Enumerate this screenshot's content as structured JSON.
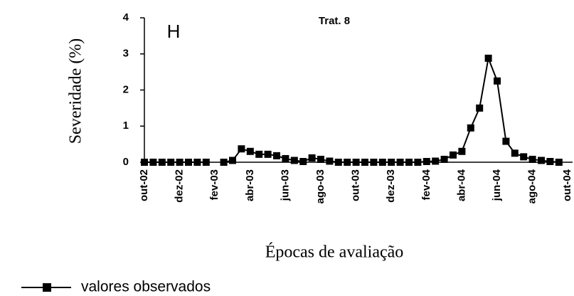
{
  "chart_data": {
    "type": "line",
    "title": "Trat. 8",
    "annotation": "H",
    "y_label": "Severidade (%)",
    "x_label": "Épocas de avaliação",
    "categories": [
      "out-02",
      null,
      null,
      null,
      "dez-02",
      null,
      null,
      null,
      "fev-03",
      null,
      null,
      null,
      "abr-03",
      null,
      null,
      null,
      "jun-03",
      null,
      null,
      null,
      "ago-03",
      null,
      null,
      null,
      "out-03",
      null,
      null,
      null,
      "dez-03",
      null,
      null,
      null,
      "fev-04",
      null,
      null,
      null,
      "abr-04",
      null,
      null,
      null,
      "jun-04",
      null,
      null,
      null,
      "ago-04",
      null,
      null,
      null,
      "out-04"
    ],
    "series": [
      {
        "name": "valores observados",
        "color": "#000000",
        "values": [
          0,
          0,
          0,
          0,
          0,
          0,
          0,
          0,
          null,
          0,
          0.05,
          0.37,
          0.3,
          0.22,
          0.22,
          0.18,
          0.1,
          0.05,
          0.02,
          0.12,
          0.08,
          0.03,
          0,
          0,
          0,
          0,
          0,
          0,
          0,
          0,
          0,
          0,
          0.02,
          0.03,
          0.08,
          0.2,
          0.3,
          0.95,
          1.5,
          2.88,
          2.25,
          0.58,
          0.25,
          0.15,
          0.08,
          0.05,
          0.02,
          0,
          null
        ]
      }
    ],
    "ylim": [
      0,
      4
    ],
    "yticks": [
      0,
      1,
      2,
      3,
      4
    ]
  }
}
